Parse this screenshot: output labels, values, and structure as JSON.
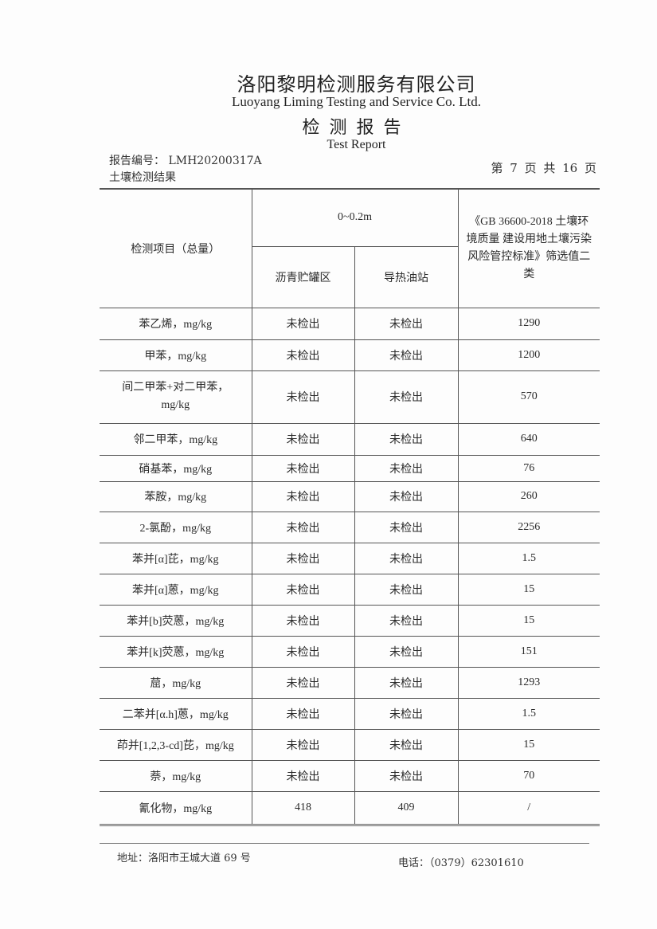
{
  "header": {
    "company_cn": "洛阳黎明检测服务有限公司",
    "company_en": "Luoyang Liming Testing and Service Co. Ltd.",
    "report_cn": "检测报告",
    "report_en": "Test Report",
    "report_no": "报告编号： LMH20200317A",
    "section": "土壤检测结果",
    "page": "第 7 页 共 16 页"
  },
  "table": {
    "col_item": "检测项目（总量）",
    "depth": "0~0.2m",
    "site1": "沥青贮罐区",
    "site2": "导热油站",
    "standard": "《GB 36600-2018 土壤环境质量 建设用地土壤污染风险管控标准》筛选值二类",
    "rows": [
      {
        "item": "苯乙烯，mg/kg",
        "site1": "未检出",
        "site2": "未检出",
        "limit": "1290"
      },
      {
        "item": "甲苯，mg/kg",
        "site1": "未检出",
        "site2": "未检出",
        "limit": "1200"
      },
      {
        "item": "间二甲苯+对二甲苯，mg/kg",
        "site1": "未检出",
        "site2": "未检出",
        "limit": "570"
      },
      {
        "item": "邻二甲苯，mg/kg",
        "site1": "未检出",
        "site2": "未检出",
        "limit": "640"
      },
      {
        "item": "硝基苯，mg/kg",
        "site1": "未检出",
        "site2": "未检出",
        "limit": "76"
      },
      {
        "item": "苯胺，mg/kg",
        "site1": "未检出",
        "site2": "未检出",
        "limit": "260"
      },
      {
        "item": "2-氯酚，mg/kg",
        "site1": "未检出",
        "site2": "未检出",
        "limit": "2256"
      },
      {
        "item": "苯并[α]芘，mg/kg",
        "site1": "未检出",
        "site2": "未检出",
        "limit": "1.5"
      },
      {
        "item": "苯并[α]蒽，mg/kg",
        "site1": "未检出",
        "site2": "未检出",
        "limit": "15"
      },
      {
        "item": "苯并[b]荧蒽，mg/kg",
        "site1": "未检出",
        "site2": "未检出",
        "limit": "15"
      },
      {
        "item": "苯并[k]荧蒽，mg/kg",
        "site1": "未检出",
        "site2": "未检出",
        "limit": "151"
      },
      {
        "item": "䓛，mg/kg",
        "site1": "未检出",
        "site2": "未检出",
        "limit": "1293"
      },
      {
        "item": "二苯并[α.h]蒽，mg/kg",
        "site1": "未检出",
        "site2": "未检出",
        "limit": "1.5"
      },
      {
        "item": "茚并[1,2,3-cd]芘，mg/kg",
        "site1": "未检出",
        "site2": "未检出",
        "limit": "15"
      },
      {
        "item": "萘，mg/kg",
        "site1": "未检出",
        "site2": "未检出",
        "limit": "70"
      },
      {
        "item": "氰化物，mg/kg",
        "site1": "418",
        "site2": "409",
        "limit": "/"
      }
    ]
  },
  "footer": {
    "address": "地址：洛阳市王城大道 69 号",
    "phone": "电话：（0379）62301610"
  }
}
